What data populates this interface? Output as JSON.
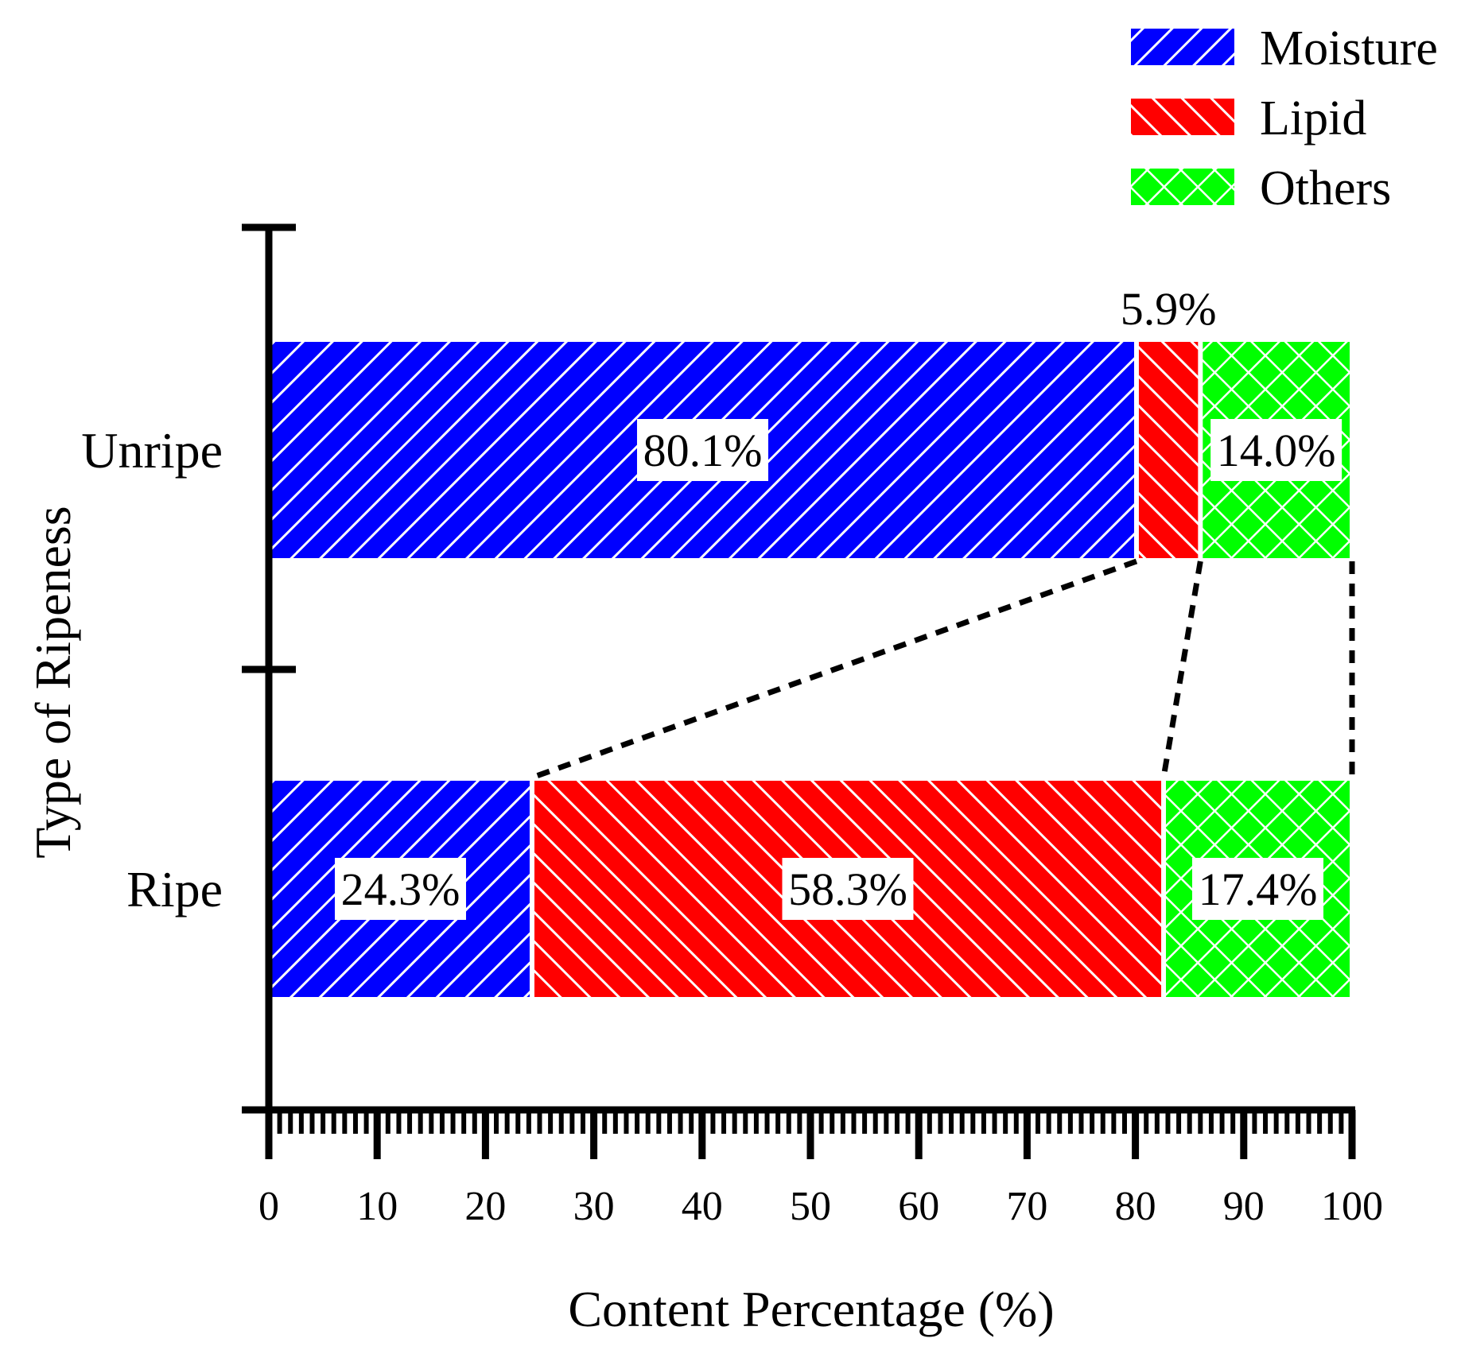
{
  "chart_data": {
    "type": "bar",
    "orientation": "horizontal",
    "stacked": true,
    "xlabel": "Content Percentage (%)",
    "ylabel": "Type of Ripeness",
    "xlim": [
      0,
      100
    ],
    "x_ticks": [
      0,
      10,
      20,
      30,
      40,
      50,
      60,
      70,
      80,
      90,
      100
    ],
    "categories": [
      "Unripe",
      "Ripe"
    ],
    "series": [
      {
        "name": "Moisture",
        "values": [
          80.1,
          24.3
        ],
        "labels": [
          "80.1%",
          "24.3%"
        ],
        "color": "#0000ff",
        "pattern": "diagonal-forward"
      },
      {
        "name": "Lipid",
        "values": [
          5.9,
          58.3
        ],
        "labels": [
          "5.9%",
          "58.3%"
        ],
        "color": "#ff0000",
        "pattern": "diagonal-backward"
      },
      {
        "name": "Others",
        "values": [
          14.0,
          17.4
        ],
        "labels": [
          "14.0%",
          "17.4%"
        ],
        "color": "#00ff00",
        "pattern": "crosshatch"
      }
    ],
    "legend_position": "top-right",
    "connectors": "dashed lines linking Lipid segment boundaries between bars"
  }
}
